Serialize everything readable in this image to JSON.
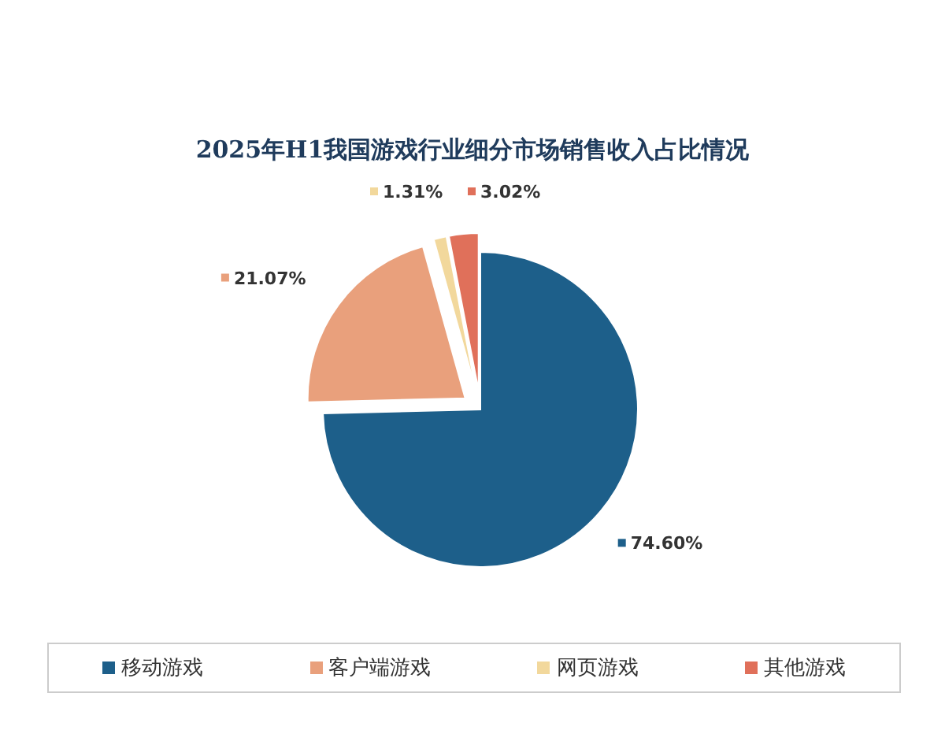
{
  "chart_data": {
    "type": "pie",
    "title": "2025年H1我国游戏行业细分市场销售收入占比情况",
    "categories": [
      "移动游戏",
      "客户端游戏",
      "网页游戏",
      "其他游戏"
    ],
    "values": [
      74.6,
      21.07,
      1.31,
      3.02
    ],
    "colors": [
      "#1d5f8a",
      "#e9a07c",
      "#f2d89c",
      "#e0705a"
    ],
    "value_labels": [
      "74.60%",
      "21.07%",
      "1.31%",
      "3.02%"
    ],
    "legend": "bottom"
  }
}
